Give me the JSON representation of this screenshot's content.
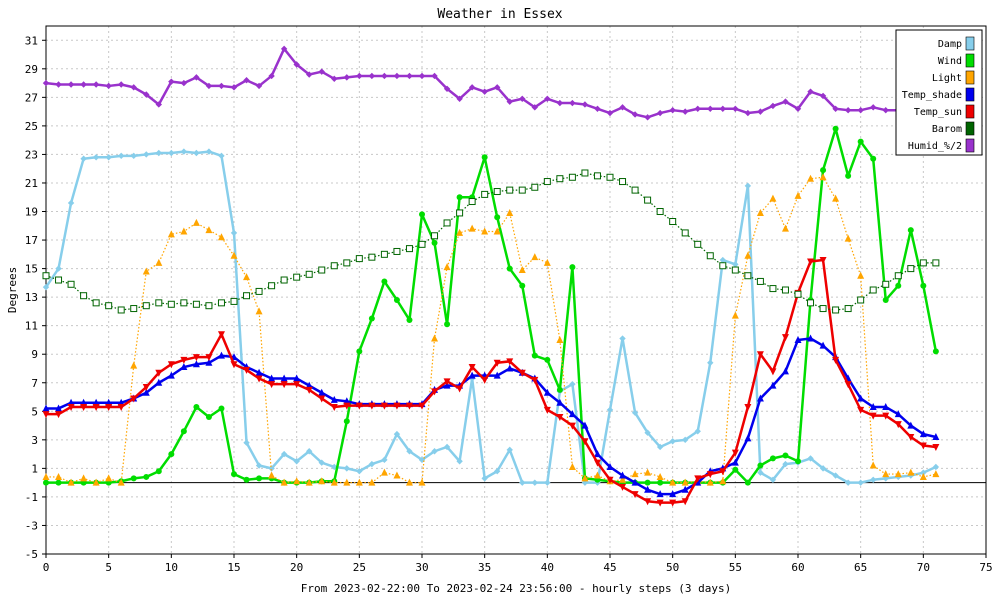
{
  "chart_data": {
    "type": "line",
    "title": "Weather in Essex",
    "xlabel": "From 2023-02-22:00 To 2023-02-24 23:56:00 - hourly steps (3 days)",
    "ylabel": "Degrees",
    "xlim": [
      0,
      75
    ],
    "ylim": [
      -5,
      32
    ],
    "xticks": [
      0,
      5,
      10,
      15,
      20,
      25,
      30,
      35,
      40,
      45,
      50,
      55,
      60,
      65,
      70,
      75
    ],
    "yticks": [
      -5,
      -3,
      -1,
      1,
      3,
      5,
      7,
      9,
      11,
      13,
      15,
      17,
      19,
      21,
      23,
      25,
      27,
      29,
      31
    ],
    "grid": true,
    "legend_position": "top-right",
    "zero_line": true,
    "x": [
      0,
      1,
      2,
      3,
      4,
      5,
      6,
      7,
      8,
      9,
      10,
      11,
      12,
      13,
      14,
      15,
      16,
      17,
      18,
      19,
      20,
      21,
      22,
      23,
      24,
      25,
      26,
      27,
      28,
      29,
      30,
      31,
      32,
      33,
      34,
      35,
      36,
      37,
      38,
      39,
      40,
      41,
      42,
      43,
      44,
      45,
      46,
      47,
      48,
      49,
      50,
      51,
      52,
      53,
      54,
      55,
      56,
      57,
      58,
      59,
      60,
      61,
      62,
      63,
      64,
      65,
      66,
      67,
      68,
      69,
      70,
      71
    ],
    "series": [
      {
        "name": "Damp",
        "color": "#87ceeb",
        "marker": "diamond",
        "style": "solid",
        "values": [
          13.7,
          15.0,
          19.6,
          22.7,
          22.8,
          22.8,
          22.9,
          22.9,
          23.0,
          23.1,
          23.1,
          23.2,
          23.1,
          23.2,
          22.9,
          17.5,
          2.8,
          1.2,
          1.0,
          2.0,
          1.5,
          2.2,
          1.4,
          1.1,
          1.0,
          0.8,
          1.3,
          1.6,
          3.4,
          2.2,
          1.6,
          2.2,
          2.5,
          1.5,
          7.3,
          0.3,
          0.8,
          2.3,
          0.0,
          0.0,
          0.0,
          6.4,
          6.9,
          0.0,
          0.0,
          5.1,
          10.1,
          4.9,
          3.5,
          2.5,
          2.9,
          3.0,
          3.6,
          8.4,
          15.6,
          15.3,
          20.8,
          0.7,
          0.2,
          1.3,
          1.4,
          1.7,
          1.0,
          0.5,
          0.0,
          0.0,
          0.2,
          0.3,
          0.4,
          0.5,
          0.7,
          1.1
        ]
      },
      {
        "name": "Wind",
        "color": "#00dd00",
        "marker": "circle",
        "style": "solid",
        "values": [
          0.0,
          0.0,
          0.0,
          0.0,
          0.0,
          0.0,
          0.1,
          0.3,
          0.4,
          0.8,
          2.0,
          3.6,
          5.3,
          4.6,
          5.2,
          0.6,
          0.2,
          0.3,
          0.3,
          0.0,
          0.0,
          0.0,
          0.1,
          0.1,
          4.3,
          9.2,
          11.5,
          14.1,
          12.8,
          11.4,
          18.8,
          16.8,
          11.1,
          20.0,
          20.0,
          22.8,
          18.6,
          15.0,
          13.8,
          8.9,
          8.6,
          6.5,
          15.1,
          0.3,
          0.2,
          0.1,
          0.0,
          0.0,
          0.0,
          0.0,
          0.0,
          0.0,
          0.0,
          0.0,
          0.0,
          0.9,
          0.0,
          1.2,
          1.7,
          1.9,
          1.5,
          12.8,
          21.9,
          24.8,
          21.5,
          23.9,
          22.7,
          12.8,
          13.8,
          17.7,
          13.8,
          9.2
        ]
      },
      {
        "name": "Light",
        "color": "#ffa500",
        "marker": "triangle",
        "style": "dotted",
        "values": [
          0.4,
          0.4,
          0.0,
          0.3,
          0.0,
          0.3,
          0.0,
          8.2,
          14.8,
          15.4,
          17.4,
          17.6,
          18.2,
          17.7,
          17.2,
          15.9,
          14.4,
          12.0,
          0.5,
          0.0,
          0.1,
          0.0,
          0.1,
          0.0,
          0.0,
          0.0,
          0.0,
          0.7,
          0.5,
          0.0,
          0.0,
          10.1,
          15.1,
          17.5,
          17.8,
          17.6,
          17.6,
          18.9,
          14.9,
          15.8,
          15.4,
          10.0,
          1.1,
          0.3,
          0.5,
          0.1,
          0.2,
          0.6,
          0.7,
          0.4,
          0.0,
          0.0,
          0.1,
          0.0,
          0.1,
          11.7,
          15.9,
          18.9,
          19.9,
          17.8,
          20.1,
          21.3,
          21.4,
          19.9,
          17.1,
          14.5,
          1.2,
          0.6,
          0.6,
          0.7,
          0.4,
          0.6
        ]
      },
      {
        "name": "Temp_shade",
        "color": "#0000ee",
        "marker": "triangle",
        "style": "solid",
        "values": [
          5.2,
          5.2,
          5.6,
          5.6,
          5.6,
          5.6,
          5.6,
          5.9,
          6.3,
          7.0,
          7.5,
          8.1,
          8.3,
          8.4,
          8.9,
          8.8,
          8.1,
          7.7,
          7.3,
          7.3,
          7.3,
          6.8,
          6.3,
          5.8,
          5.7,
          5.5,
          5.5,
          5.5,
          5.5,
          5.5,
          5.5,
          6.5,
          6.8,
          6.8,
          7.5,
          7.5,
          7.5,
          8.0,
          7.7,
          7.3,
          6.3,
          5.6,
          4.8,
          4.0,
          2.0,
          1.1,
          0.5,
          0.0,
          -0.5,
          -0.8,
          -0.8,
          -0.5,
          0.0,
          0.8,
          1.0,
          1.4,
          3.1,
          5.9,
          6.8,
          7.8,
          10.0,
          10.1,
          9.6,
          8.8,
          7.3,
          5.9,
          5.3,
          5.3,
          4.8,
          4.0,
          3.4,
          3.2
        ]
      },
      {
        "name": "Temp_sun",
        "color": "#ee0000",
        "marker": "triangle-down",
        "style": "solid",
        "values": [
          4.8,
          4.8,
          5.3,
          5.3,
          5.3,
          5.3,
          5.3,
          5.9,
          6.7,
          7.7,
          8.3,
          8.6,
          8.8,
          8.8,
          10.4,
          8.3,
          7.9,
          7.3,
          6.9,
          6.9,
          6.9,
          6.5,
          5.9,
          5.3,
          5.4,
          5.4,
          5.4,
          5.4,
          5.4,
          5.4,
          5.4,
          6.4,
          7.1,
          6.6,
          8.1,
          7.2,
          8.4,
          8.5,
          7.7,
          7.2,
          5.1,
          4.6,
          4.0,
          2.9,
          1.4,
          0.2,
          -0.3,
          -0.8,
          -1.3,
          -1.4,
          -1.4,
          -1.3,
          0.3,
          0.6,
          0.8,
          2.1,
          5.3,
          9.0,
          7.8,
          10.2,
          13.3,
          15.5,
          15.6,
          8.6,
          6.9,
          5.1,
          4.7,
          4.7,
          4.1,
          3.2,
          2.6,
          2.5
        ]
      },
      {
        "name": "Barom",
        "color": "#006400",
        "marker": "square",
        "style": "dotted",
        "values": [
          14.5,
          14.2,
          13.9,
          13.1,
          12.6,
          12.4,
          12.1,
          12.2,
          12.4,
          12.6,
          12.5,
          12.6,
          12.5,
          12.4,
          12.6,
          12.7,
          13.1,
          13.4,
          13.8,
          14.2,
          14.4,
          14.6,
          14.9,
          15.2,
          15.4,
          15.7,
          15.8,
          16.0,
          16.2,
          16.4,
          16.7,
          17.3,
          18.2,
          18.9,
          19.7,
          20.2,
          20.4,
          20.5,
          20.5,
          20.7,
          21.1,
          21.3,
          21.4,
          21.7,
          21.5,
          21.4,
          21.1,
          20.5,
          19.8,
          19.0,
          18.3,
          17.5,
          16.7,
          15.9,
          15.2,
          14.9,
          14.5,
          14.1,
          13.6,
          13.5,
          13.2,
          12.6,
          12.2,
          12.1,
          12.2,
          12.8,
          13.5,
          13.9,
          14.5,
          15.0,
          15.4,
          15.4
        ]
      },
      {
        "name": "Humid_%/2",
        "color": "#9932cc",
        "marker": "diamond",
        "style": "solid",
        "values": [
          28.0,
          27.9,
          27.9,
          27.9,
          27.9,
          27.8,
          27.9,
          27.7,
          27.2,
          26.5,
          28.1,
          28.0,
          28.4,
          27.8,
          27.8,
          27.7,
          28.2,
          27.8,
          28.5,
          30.4,
          29.3,
          28.6,
          28.8,
          28.3,
          28.4,
          28.5,
          28.5,
          28.5,
          28.5,
          28.5,
          28.5,
          28.5,
          27.6,
          26.9,
          27.7,
          27.4,
          27.7,
          26.7,
          26.9,
          26.3,
          26.9,
          26.6,
          26.6,
          26.5,
          26.2,
          25.9,
          26.3,
          25.8,
          25.6,
          25.9,
          26.1,
          26.0,
          26.2,
          26.2,
          26.2,
          26.2,
          25.9,
          26.0,
          26.4,
          26.7,
          26.2,
          27.4,
          27.1,
          26.2,
          26.1,
          26.1,
          26.3,
          26.1,
          26.1,
          26.0,
          26.0,
          26.0
        ]
      }
    ]
  }
}
